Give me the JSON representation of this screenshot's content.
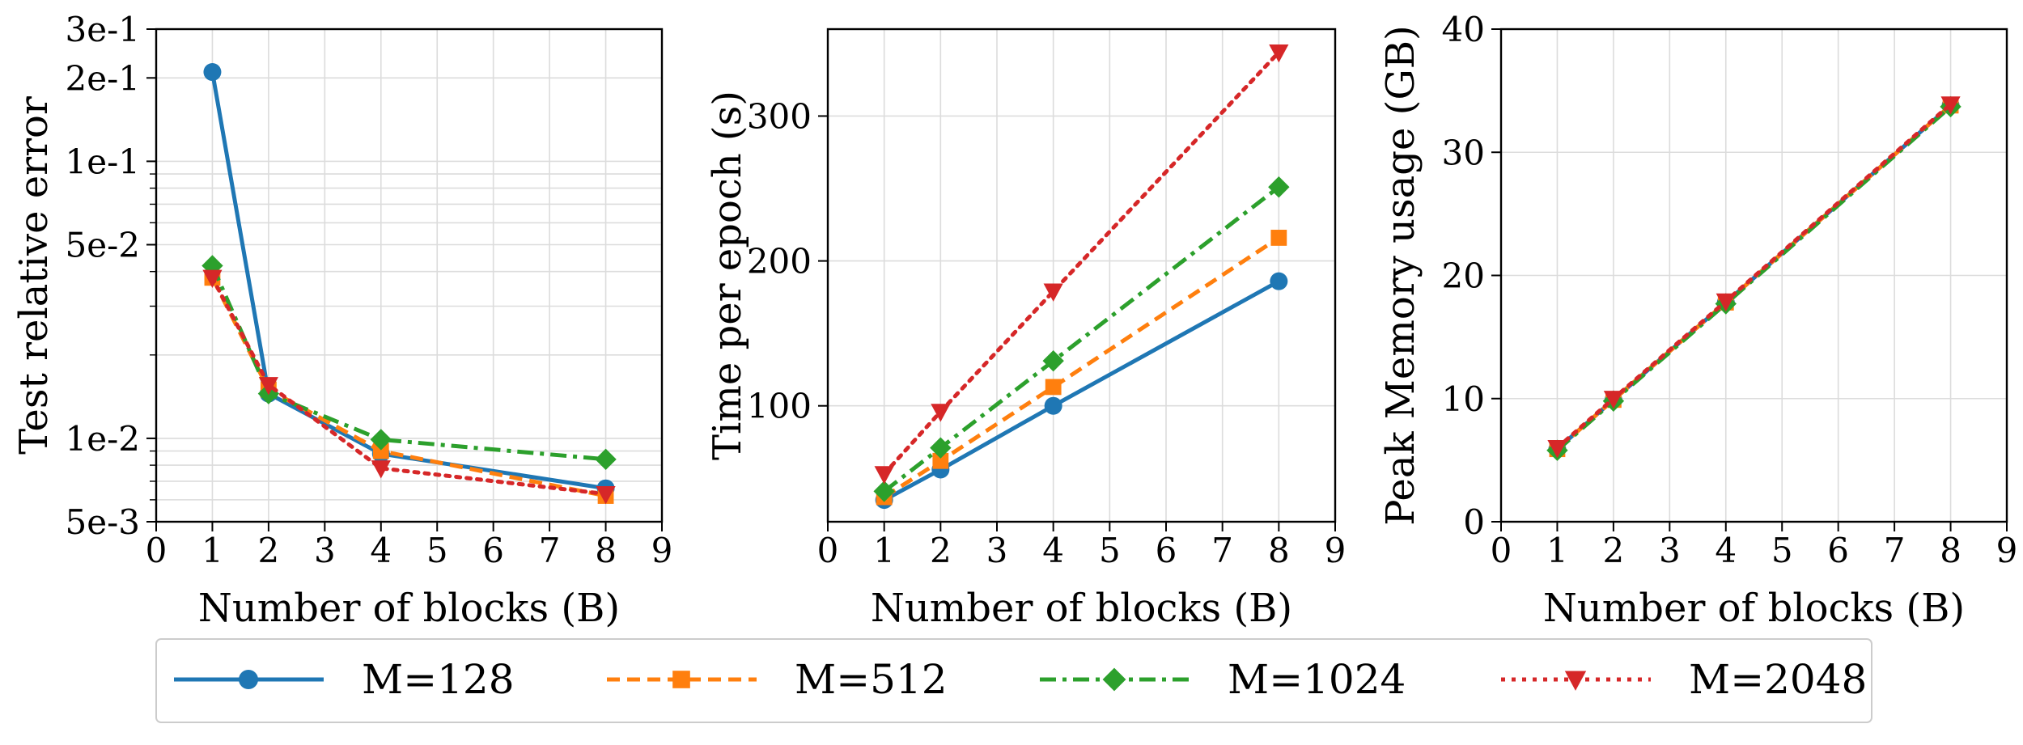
{
  "chart_data": [
    {
      "type": "line",
      "title": "",
      "xlabel": "Number of blocks (B)",
      "ylabel": "Test relative error",
      "yscale": "log",
      "xlim": [
        0,
        9
      ],
      "ylim": [
        0.005,
        0.3
      ],
      "grid": true,
      "x": [
        1,
        2,
        4,
        8
      ],
      "xticks": [
        0,
        1,
        2,
        3,
        4,
        5,
        6,
        7,
        8,
        9
      ],
      "yticks": [
        {
          "value": 0.005,
          "label": "5e-3"
        },
        {
          "value": 0.01,
          "label": "1e-2"
        },
        {
          "value": 0.05,
          "label": "5e-2"
        },
        {
          "value": 0.1,
          "label": "1e-1"
        },
        {
          "value": 0.2,
          "label": "2e-1"
        },
        {
          "value": 0.3,
          "label": "3e-1"
        }
      ],
      "series": [
        {
          "name": "M=128",
          "values": [
            0.21,
            0.0145,
            0.0088,
            0.0066
          ]
        },
        {
          "name": "M=512",
          "values": [
            0.038,
            0.015,
            0.009,
            0.0062
          ]
        },
        {
          "name": "M=1024",
          "values": [
            0.042,
            0.0145,
            0.0099,
            0.0084
          ]
        },
        {
          "name": "M=2048",
          "values": [
            0.038,
            0.0156,
            0.0078,
            0.0063
          ]
        }
      ]
    },
    {
      "type": "line",
      "title": "",
      "xlabel": "Number of blocks (B)",
      "ylabel": "Time per epoch (s)",
      "yscale": "linear",
      "xlim": [
        0,
        9
      ],
      "ylim": [
        20,
        360
      ],
      "grid": true,
      "x": [
        1,
        2,
        4,
        8
      ],
      "xticks": [
        0,
        1,
        2,
        3,
        4,
        5,
        6,
        7,
        8,
        9
      ],
      "yticks": [
        {
          "value": 100,
          "label": "100"
        },
        {
          "value": 200,
          "label": "200"
        },
        {
          "value": 300,
          "label": "300"
        }
      ],
      "series": [
        {
          "name": "M=128",
          "values": [
            35,
            56,
            100,
            186
          ]
        },
        {
          "name": "M=512",
          "values": [
            37,
            62,
            113,
            216
          ]
        },
        {
          "name": "M=1024",
          "values": [
            41,
            71,
            131,
            251
          ]
        },
        {
          "name": "M=2048",
          "values": [
            53,
            96,
            179,
            344
          ]
        }
      ]
    },
    {
      "type": "line",
      "title": "",
      "xlabel": "Number of blocks (B)",
      "ylabel": "Peak Memory usage (GB)",
      "yscale": "linear",
      "xlim": [
        0,
        9
      ],
      "ylim": [
        0,
        40
      ],
      "grid": true,
      "x": [
        1,
        2,
        4,
        8
      ],
      "xticks": [
        0,
        1,
        2,
        3,
        4,
        5,
        6,
        7,
        8,
        9
      ],
      "yticks": [
        {
          "value": 0,
          "label": "0"
        },
        {
          "value": 10,
          "label": "10"
        },
        {
          "value": 20,
          "label": "20"
        },
        {
          "value": 30,
          "label": "30"
        },
        {
          "value": 40,
          "label": "40"
        }
      ],
      "series": [
        {
          "name": "M=128",
          "values": [
            5.9,
            9.9,
            17.8,
            33.8
          ]
        },
        {
          "name": "M=512",
          "values": [
            5.9,
            9.9,
            17.8,
            33.8
          ]
        },
        {
          "name": "M=1024",
          "values": [
            5.8,
            9.8,
            17.7,
            33.7
          ]
        },
        {
          "name": "M=2048",
          "values": [
            6.0,
            10.0,
            17.9,
            33.9
          ]
        }
      ]
    }
  ],
  "legend": {
    "placement": "bottom-center",
    "entries": [
      {
        "label": "M=128",
        "color": "#1f77b4",
        "dash": "solid",
        "marker": "circle"
      },
      {
        "label": "M=512",
        "color": "#ff7f0e",
        "dash": "dashed",
        "marker": "square"
      },
      {
        "label": "M=1024",
        "color": "#2ca02c",
        "dash": "dashdot",
        "marker": "diamond"
      },
      {
        "label": "M=2048",
        "color": "#d62728",
        "dash": "dotted",
        "marker": "triangle-down"
      }
    ]
  }
}
